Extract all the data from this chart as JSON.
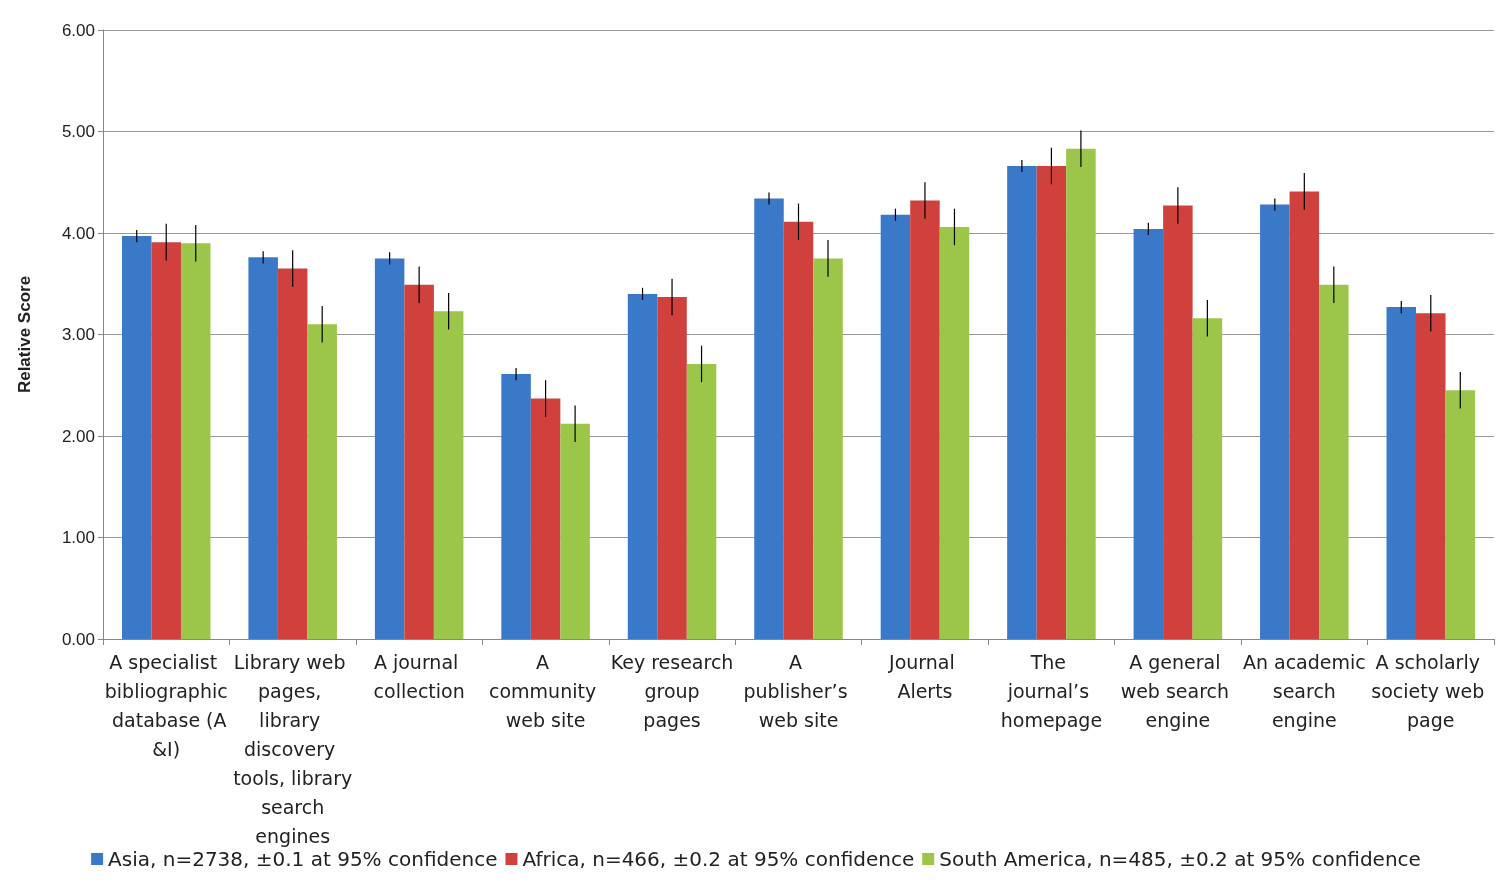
{
  "chart_data": {
    "type": "bar",
    "ylabel": "Relative Score",
    "categories": [
      "A specialist bibliographic database (A&I)",
      "Library web pages, library discovery tools, library search engines",
      "A journal collection",
      "A community web site",
      "Key research group pages",
      "A publisher’s web site",
      "Journal Alerts",
      "The journal’s homepage",
      "A general web search engine",
      "An academic search engine",
      "A scholarly society web page"
    ],
    "series": [
      {
        "name": "Asia, n=2738, ±0.1 at 95% confidence",
        "color": "#3a78c8",
        "values": [
          3.97,
          3.76,
          3.75,
          2.61,
          3.4,
          4.34,
          4.18,
          4.66,
          4.04,
          4.28,
          3.27
        ],
        "errors": [
          0.06,
          0.06,
          0.06,
          0.06,
          0.06,
          0.06,
          0.06,
          0.06,
          0.06,
          0.06,
          0.06
        ]
      },
      {
        "name": "Africa, n=466, ±0.2 at 95% confidence",
        "color": "#d0403d",
        "values": [
          3.91,
          3.65,
          3.49,
          2.37,
          3.37,
          4.11,
          4.32,
          4.66,
          4.27,
          4.41,
          3.21
        ],
        "errors": [
          0.18,
          0.18,
          0.18,
          0.18,
          0.18,
          0.18,
          0.18,
          0.18,
          0.18,
          0.18,
          0.18
        ]
      },
      {
        "name": "South America, n=485, ±0.2 at 95% confidence",
        "color": "#9bc64a",
        "values": [
          3.9,
          3.1,
          3.23,
          2.12,
          2.71,
          3.75,
          4.06,
          4.83,
          3.16,
          3.49,
          2.45
        ],
        "errors": [
          0.18,
          0.18,
          0.18,
          0.18,
          0.18,
          0.18,
          0.18,
          0.18,
          0.18,
          0.18,
          0.18
        ]
      }
    ],
    "ylim": [
      0,
      6
    ],
    "yticks": [
      {
        "value": 0,
        "label": "0.00"
      },
      {
        "value": 1,
        "label": "1.00"
      },
      {
        "value": 2,
        "label": "2.00"
      },
      {
        "value": 3,
        "label": "3.00"
      },
      {
        "value": 4,
        "label": "4.00"
      },
      {
        "value": 5,
        "label": "5.00"
      },
      {
        "value": 6,
        "label": "6.00"
      }
    ],
    "grid": "y",
    "legend": "bottom"
  }
}
